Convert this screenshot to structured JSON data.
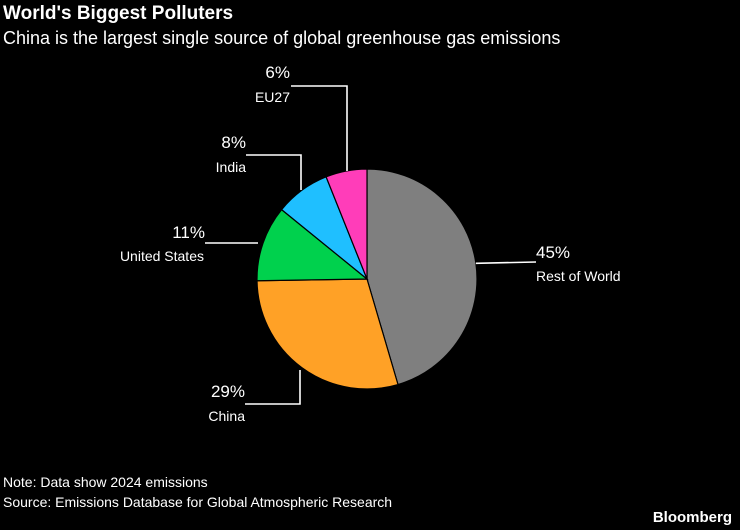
{
  "header": {
    "title": "World's Biggest Polluters",
    "subtitle": "China is the largest single source of global greenhouse gas emissions"
  },
  "footer": {
    "note": "Note: Data show 2024 emissions",
    "source": "Source: Emissions Database for Global Atmospheric Research",
    "brand": "Bloomberg"
  },
  "chart_data": {
    "type": "pie",
    "title": "World's Biggest Polluters",
    "subtitle": "China is the largest single source of global greenhouse gas emissions",
    "start": "12 o'clock",
    "direction": "clockwise",
    "slices": [
      {
        "label": "Rest of World",
        "value": 45,
        "display": "45%",
        "color": "#7f7f7f"
      },
      {
        "label": "China",
        "value": 29,
        "display": "29%",
        "color": "#ffa126"
      },
      {
        "label": "United States",
        "value": 11,
        "display": "11%",
        "color": "#00d14d"
      },
      {
        "label": "India",
        "value": 8,
        "display": "8%",
        "color": "#1fbfff"
      },
      {
        "label": "EU27",
        "value": 6,
        "display": "6%",
        "color": "#ff3db9"
      }
    ]
  }
}
